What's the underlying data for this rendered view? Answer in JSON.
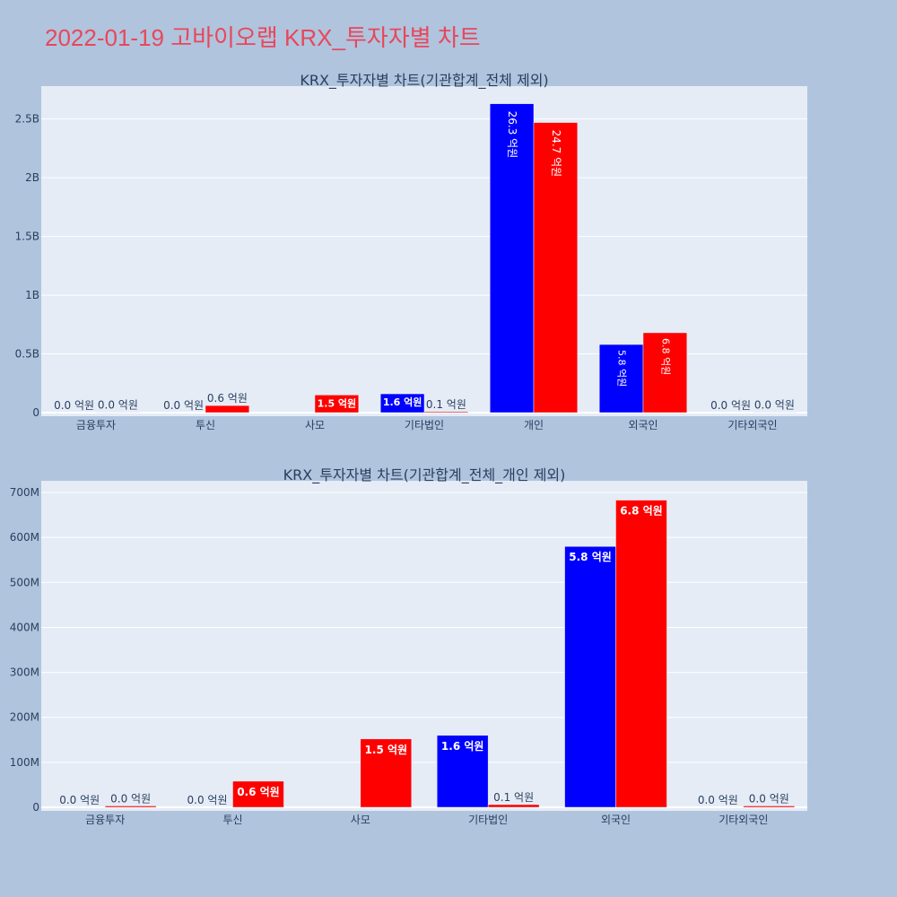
{
  "page": {
    "title": "2022-01-19 고바이오랩 KRX_투자자별 차트"
  },
  "colors": {
    "background": "#b0c4de",
    "plot_bg": "#e5ecf6",
    "title": "#e8475a",
    "buy": "#0000ff",
    "sell": "#ff0000"
  },
  "chart_data": [
    {
      "type": "bar",
      "title": "KRX_투자자별 차트(기관합계_전체 제외)",
      "categories": [
        "금융투자",
        "투신",
        "사모",
        "기타법인",
        "개인",
        "외국인",
        "기타외국인"
      ],
      "yticks": [
        {
          "v": 0,
          "label": "0"
        },
        {
          "v": 500000000,
          "label": "0.5B"
        },
        {
          "v": 1000000000,
          "label": "1B"
        },
        {
          "v": 1500000000,
          "label": "1.5B"
        },
        {
          "v": 2000000000,
          "label": "2B"
        },
        {
          "v": 2500000000,
          "label": "2.5B"
        }
      ],
      "ylim": [
        0,
        2780000000
      ],
      "series": [
        {
          "color": "#0000ff",
          "values": [
            0,
            0,
            null,
            160000000,
            2630000000,
            580000000,
            0
          ],
          "labels": [
            "0.0 억원",
            "0.0 억원",
            "",
            "1.6 억원",
            "26.3 억원",
            "5.8 억원",
            "0.0 억원"
          ]
        },
        {
          "color": "#ff0000",
          "values": [
            3000000,
            60000000,
            150000000,
            8000000,
            2470000000,
            680000000,
            3000000
          ],
          "labels": [
            "0.0 억원",
            "0.6 억원",
            "1.5 억원",
            "0.1 억원",
            "24.7 억원",
            "6.8 억원",
            "0.0 억원"
          ]
        }
      ]
    },
    {
      "type": "bar",
      "title": "KRX_투자자별 차트(기관합계_전체_개인 제외)",
      "categories": [
        "금융투자",
        "투신",
        "사모",
        "기타법인",
        "외국인",
        "기타외국인"
      ],
      "yticks": [
        {
          "v": 0,
          "label": "0"
        },
        {
          "v": 100000000,
          "label": "100M"
        },
        {
          "v": 200000000,
          "label": "200M"
        },
        {
          "v": 300000000,
          "label": "300M"
        },
        {
          "v": 400000000,
          "label": "400M"
        },
        {
          "v": 500000000,
          "label": "500M"
        },
        {
          "v": 600000000,
          "label": "600M"
        },
        {
          "v": 700000000,
          "label": "700M"
        }
      ],
      "ylim": [
        0,
        726000000
      ],
      "series": [
        {
          "color": "#0000ff",
          "values": [
            0,
            0,
            null,
            160000000,
            580000000,
            0
          ],
          "labels": [
            "0.0 억원",
            "0.0 억원",
            "",
            "1.6 억원",
            "5.8 억원",
            "0.0 억원"
          ]
        },
        {
          "color": "#ff0000",
          "values": [
            3000000,
            58000000,
            152000000,
            6000000,
            683000000,
            3000000
          ],
          "labels": [
            "0.0 억원",
            "0.6 억원",
            "1.5 억원",
            "0.1 억원",
            "6.8 억원",
            "0.0 억원"
          ]
        }
      ]
    }
  ]
}
